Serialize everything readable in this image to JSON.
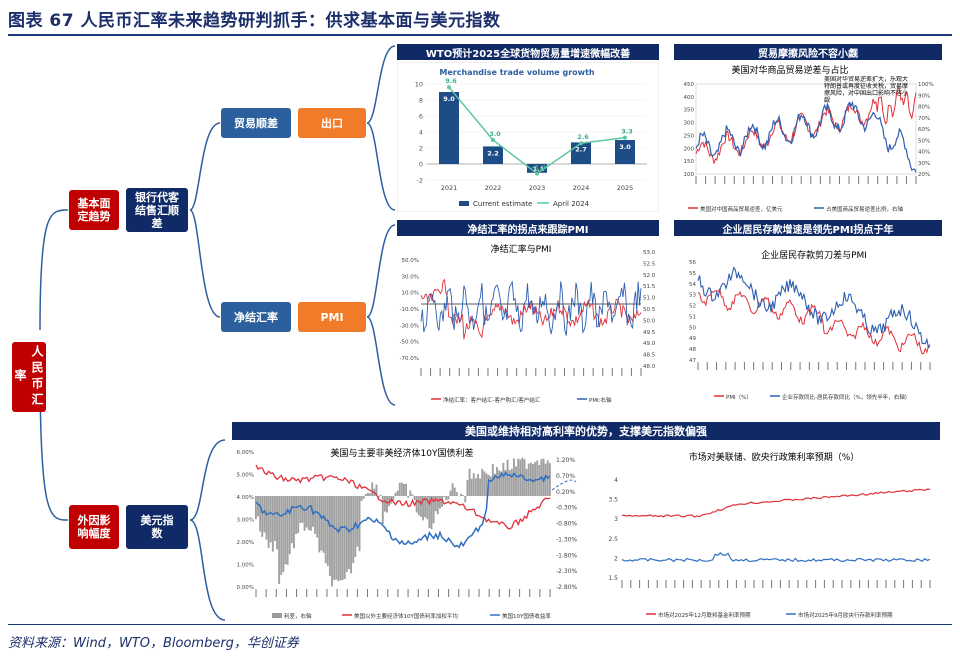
{
  "title": "图表 67   人民币汇率未来趋势研判抓手：供求基本面与美元指数",
  "source": "资料来源：Wind，WTO，Bloomberg，华创证券",
  "tree": {
    "root": "人民币汇率",
    "fundamentals": "基本面定趋势",
    "bank_settlement": "银行代客结售汇顺差",
    "trade_surplus": "贸易顺差",
    "export": "出口",
    "net_settlement": "净结汇率",
    "pmi": "PMI",
    "external": "外因影响幅度",
    "usd_index": "美元指数"
  },
  "panels": {
    "wto_header": "WTO预计2025全球货物贸易量增速微幅改善",
    "trade_risk_header": "贸易摩擦风险不容小觑",
    "net_settle_header": "净结汇率的拐点来跟踪PMI",
    "corp_header": "企业居民存款增速是领先PMI拐点于年",
    "usd_header": "美国或维持相对高利率的优势，支撑美元指数偏强"
  },
  "charts": {
    "wto": {
      "title": "Merchandise trade volume growth",
      "legend_bar": "Current estimate",
      "legend_line": "April 2024"
    },
    "us_china": {
      "title": "美国对华商品贸易逆差与占比",
      "annotation": "美国对华贸易逆差扩大，乐观大特朗普或再度征收关税，贸易摩擦风险，对中国出口影响不容小觑",
      "legend_a": "美国对中国商品贸易逆差，亿美元",
      "legend_b": "占美国商品贸易逆差比例，右轴"
    },
    "net_settle": {
      "title": "净结汇率与PMI",
      "legend_a": "净结汇率：客户结汇-客户购汇/客户结汇",
      "legend_b": "PMI:右轴"
    },
    "corp": {
      "title": "企业居民存款剪刀差与PMI",
      "legend_a": "PMI（%）",
      "legend_b": "企业存款同比-居民存款同比（%，领先半年，右轴）"
    },
    "yields": {
      "title": "美国与主要非美经济体10Y国债利差",
      "legend_a": "利差，右轴",
      "legend_b": "美国以外主要经济体10Y国债利率加权平均",
      "legend_c": "美国10Y国债收益率"
    },
    "fed_ecb": {
      "title": "市场对美联储、欧央行政策利率预期（%）",
      "legend_a": "市场对2025年12月联邦基金利率预期",
      "legend_b": "市场对2025年9月欧央行存款利率预期"
    }
  },
  "chart_data": [
    {
      "type": "bar",
      "title": "Merchandise trade volume growth",
      "categories": [
        "2021",
        "2022",
        "2023",
        "2024",
        "2025"
      ],
      "series": [
        {
          "name": "Current estimate",
          "values": [
            9.0,
            2.2,
            -1.1,
            2.7,
            3.0
          ]
        },
        {
          "name": "April 2024",
          "values": [
            9.6,
            3.0,
            -1.2,
            2.6,
            3.3
          ]
        }
      ],
      "yticks": [
        "-2",
        "0",
        "2",
        "4",
        "6",
        "8",
        "10"
      ],
      "ylim": [
        -2,
        10
      ]
    },
    {
      "type": "line",
      "title": "美国对华商品贸易逆差与占比",
      "yticks_left": [
        "100",
        "150",
        "200",
        "250",
        "300",
        "350",
        "400",
        "450"
      ],
      "yticks_right": [
        "20%",
        "30%",
        "40%",
        "50%",
        "60%",
        "70%",
        "80%",
        "90%",
        "100%"
      ],
      "series": [
        {
          "name": "美国对中国商品贸易逆差，亿美元"
        },
        {
          "name": "占美国商品贸易逆差比例，右轴"
        }
      ]
    },
    {
      "type": "line",
      "title": "净结汇率与PMI",
      "yticks_left": [
        "50.0%",
        "30.0%",
        "10.0%",
        "-10.0%",
        "-30.0%",
        "-50.0%",
        "-70.0%"
      ],
      "yticks_right": [
        "53.0",
        "52.5",
        "52.0",
        "51.5",
        "51.0",
        "50.5",
        "50.0",
        "49.5",
        "49.0",
        "48.5",
        "48.0"
      ],
      "series": [
        {
          "name": "净结汇率：客户结汇-客户购汇/客户结汇"
        },
        {
          "name": "PMI:右轴"
        }
      ]
    },
    {
      "type": "line",
      "title": "企业居民存款剪刀差与PMI",
      "yticks_left": [
        "56",
        "55",
        "54",
        "53",
        "52",
        "51",
        "50",
        "49",
        "48",
        "47"
      ],
      "series": [
        {
          "name": "PMI（%）"
        },
        {
          "name": "企业存款同比-居民存款同比（%，领先半年，右轴）"
        }
      ]
    },
    {
      "type": "line",
      "title": "美国与主要非美经济体10Y国债利差",
      "yticks_left": [
        "6.00%",
        "5.00%",
        "4.00%",
        "3.00%",
        "2.00%",
        "1.00%",
        "0.00%"
      ],
      "yticks_right": [
        "1.20%",
        "0.70%",
        "0.20%",
        "-0.30%",
        "-0.80%",
        "-1.30%",
        "-1.80%",
        "-2.30%",
        "-2.80%"
      ],
      "series": [
        {
          "name": "利差，右轴"
        },
        {
          "name": "美国以外主要经济体10Y国债利率加权平均"
        },
        {
          "name": "美国10Y国债收益率"
        }
      ]
    },
    {
      "type": "line",
      "title": "市场对美联储、欧央行政策利率预期（%）",
      "yticks_left": [
        "4",
        "3.5",
        "3",
        "2.5",
        "2",
        "1.5"
      ],
      "series": [
        {
          "name": "市场对2025年12月联邦基金利率预期"
        },
        {
          "name": "市场对2025年9月欧央行存款利率预期"
        }
      ]
    }
  ]
}
